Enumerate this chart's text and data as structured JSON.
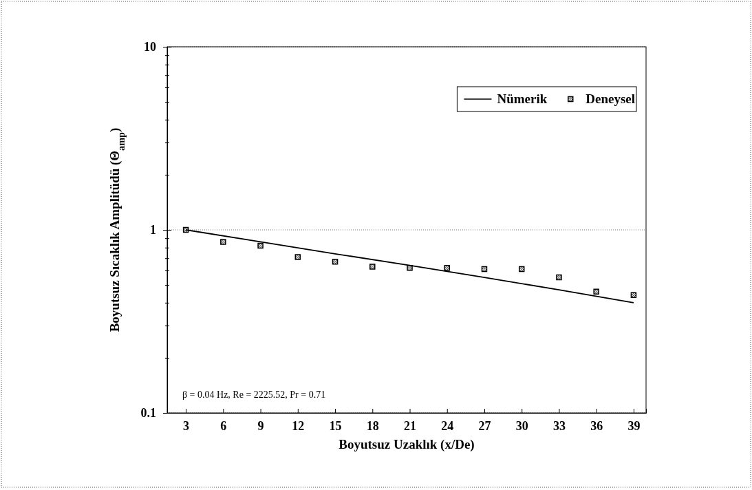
{
  "chart_data": {
    "type": "line",
    "xlabel": "Boyutsuz Uzaklık (x/De)",
    "ylabel": "Boyutsuz Sıcaklık Amplitüdü (Θ$_{amp}$)",
    "annotations": [
      "β = 0.04 Hz, Re = 2225.52, Pr = 0.71"
    ],
    "series": [
      {
        "name": "Nümerik",
        "color": "#000000",
        "marker": "none",
        "line_style": "solid",
        "x": [
          3,
          9,
          15,
          21,
          27,
          33,
          39
        ],
        "values": [
          1.0,
          0.86,
          0.74,
          0.64,
          0.55,
          0.47,
          0.4
        ]
      },
      {
        "name": "Deneysel",
        "type": "scatter",
        "color": "#000000",
        "marker": "square",
        "x": [
          3,
          6,
          9,
          12,
          15,
          18,
          21,
          24,
          27,
          30,
          33,
          36,
          39
        ],
        "values": [
          1.0,
          0.86,
          0.82,
          0.71,
          0.67,
          0.63,
          0.62,
          0.62,
          0.61,
          0.61,
          0.55,
          0.46,
          0.44
        ]
      }
    ],
    "xlim": [
      1.5,
      40
    ],
    "xticks": [
      3,
      6,
      9,
      12,
      15,
      18,
      21,
      24,
      27,
      30,
      33,
      36,
      39
    ],
    "ylim": [
      0.1,
      10
    ],
    "log": "y",
    "yticks": [
      0.1,
      {
        "value": 0.2,
        "label": null
      },
      {
        "value": 0.3,
        "label": null
      },
      {
        "value": 0.4,
        "label": null
      },
      {
        "value": 0.5,
        "label": null
      },
      {
        "value": 0.6,
        "label": null
      },
      {
        "value": 0.7,
        "label": null
      },
      {
        "value": 0.8,
        "label": null
      },
      {
        "value": 0.9,
        "label": null
      },
      1,
      {
        "value": 2,
        "label": null
      },
      {
        "value": 3,
        "label": null
      },
      {
        "value": 4,
        "label": null
      },
      {
        "value": 5,
        "label": null
      },
      {
        "value": 6,
        "label": null
      },
      {
        "value": 7,
        "label": null
      },
      {
        "value": 8,
        "label": null
      },
      {
        "value": 9,
        "label": null
      },
      10
    ],
    "grid": "y",
    "legend": "top right"
  }
}
